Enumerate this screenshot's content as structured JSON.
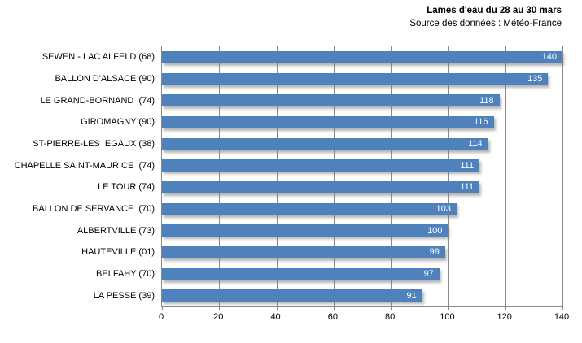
{
  "header": {
    "title": "Lames d'eau du 28 au 30 mars",
    "subtitle": "Source des données : Météo-France"
  },
  "colors": {
    "bar": "#4F81BD",
    "grid": "#8a8a8a",
    "axis": "#8a8a8a",
    "title_text": "#000000",
    "label_text": "#000000",
    "value_text": "#FFFFFF",
    "background": "#FFFFFF"
  },
  "chart_data": {
    "type": "bar",
    "orientation": "horizontal",
    "title": "Lames d'eau du 28 au 30 mars",
    "subtitle": "Source des données : Météo-France",
    "xlabel": "",
    "ylabel": "",
    "xlim": [
      0,
      140
    ],
    "xticks": [
      0,
      20,
      40,
      60,
      80,
      100,
      120,
      140
    ],
    "grid": true,
    "data_labels_position": "inside-end",
    "categories": [
      "SEWEN - LAC ALFELD (68)",
      "BALLON D'ALSACE (90)",
      "LE GRAND-BORNAND  (74)",
      "GIROMAGNY (90)",
      "ST-PIERRE-LES  EGAUX (38)",
      "CHAPELLE SAINT-MAURICE  (74)",
      "LE TOUR (74)",
      "BALLON DE SERVANCE  (70)",
      "ALBERTVILLE (73)",
      "HAUTEVILLE (01)",
      "BELFAHY (70)",
      "LA PESSE (39)"
    ],
    "values": [
      140,
      135,
      118,
      116,
      114,
      111,
      111,
      103,
      100,
      99,
      97,
      91
    ]
  }
}
